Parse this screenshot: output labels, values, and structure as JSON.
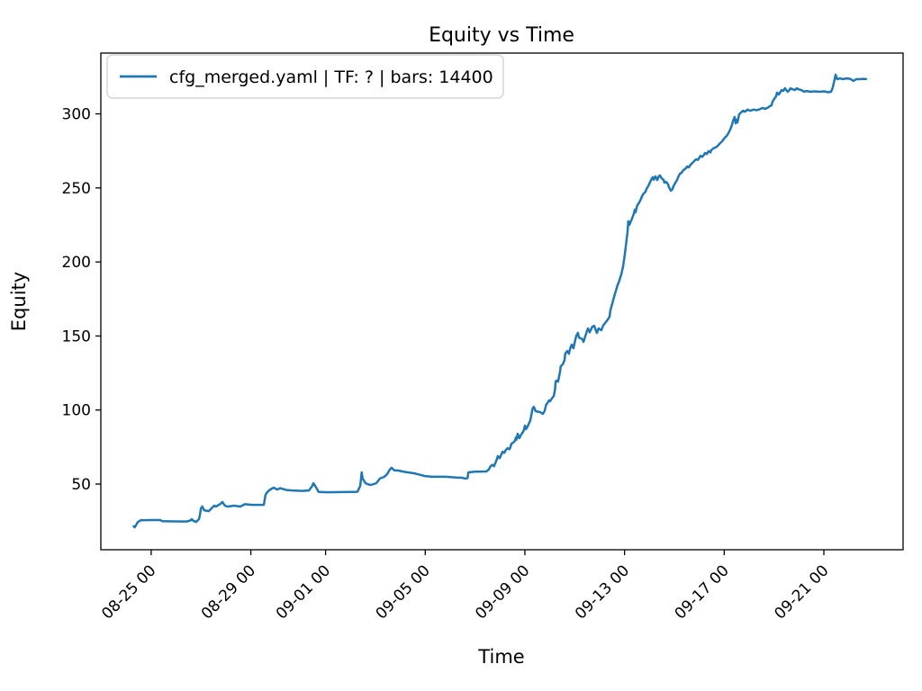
{
  "chart_data": {
    "type": "line",
    "title": "Equity vs Time",
    "xlabel": "Time",
    "ylabel": "Equity",
    "background": "#ffffff",
    "grid": false,
    "legend_position": "upper left",
    "frame_color": "#000000",
    "legend_border_color": "#cccccc",
    "x_unit": "days relative to 08-25 00:00",
    "xlim": [
      -2.02,
      30.18
    ],
    "ylim": [
      5.65,
      341.05
    ],
    "x_ticks": [
      {
        "label": "08-25 00",
        "t": 0
      },
      {
        "label": "08-29 00",
        "t": 4
      },
      {
        "label": "09-01 00",
        "t": 7
      },
      {
        "label": "09-05 00",
        "t": 11
      },
      {
        "label": "09-09 00",
        "t": 15
      },
      {
        "label": "09-13 00",
        "t": 19
      },
      {
        "label": "09-17 00",
        "t": 23
      },
      {
        "label": "09-21 00",
        "t": 27
      }
    ],
    "y_ticks": [
      50,
      100,
      150,
      200,
      250,
      300
    ],
    "series": [
      {
        "name": "cfg_merged.yaml | TF: ? | bars: 14400",
        "color": "#1f77b4",
        "line_width": 2.5,
        "points": [
          [
            -0.7,
            21.5
          ],
          [
            -0.66,
            20.8
          ],
          [
            -0.54,
            24.3
          ],
          [
            -0.42,
            25.6
          ],
          [
            0.0,
            25.7
          ],
          [
            0.36,
            25.7
          ],
          [
            0.45,
            24.9
          ],
          [
            0.9,
            24.8
          ],
          [
            1.41,
            24.7
          ],
          [
            1.58,
            25.4
          ],
          [
            1.63,
            26.3
          ],
          [
            1.7,
            25.1
          ],
          [
            1.81,
            24.5
          ],
          [
            1.92,
            26.3
          ],
          [
            1.95,
            28.7
          ],
          [
            2.0,
            33.6
          ],
          [
            2.05,
            34.8
          ],
          [
            2.13,
            32.3
          ],
          [
            2.31,
            31.7
          ],
          [
            2.42,
            33.6
          ],
          [
            2.53,
            35.4
          ],
          [
            2.6,
            34.8
          ],
          [
            2.78,
            36.6
          ],
          [
            2.86,
            37.9
          ],
          [
            2.96,
            35.4
          ],
          [
            3.07,
            34.8
          ],
          [
            3.33,
            35.4
          ],
          [
            3.58,
            34.8
          ],
          [
            3.76,
            36.4
          ],
          [
            4.05,
            36.0
          ],
          [
            4.52,
            36.0
          ],
          [
            4.59,
            42.7
          ],
          [
            4.66,
            44.5
          ],
          [
            4.73,
            45.7
          ],
          [
            4.84,
            46.9
          ],
          [
            4.92,
            47.6
          ],
          [
            5.06,
            46.3
          ],
          [
            5.17,
            47.2
          ],
          [
            5.42,
            46.0
          ],
          [
            5.67,
            45.7
          ],
          [
            6.04,
            45.4
          ],
          [
            6.33,
            45.7
          ],
          [
            6.47,
            48.8
          ],
          [
            6.51,
            50.6
          ],
          [
            6.58,
            48.8
          ],
          [
            6.65,
            46.9
          ],
          [
            6.72,
            44.7
          ],
          [
            7.12,
            44.5
          ],
          [
            7.66,
            44.6
          ],
          [
            8.28,
            44.8
          ],
          [
            8.39,
            48.8
          ],
          [
            8.45,
            57.9
          ],
          [
            8.49,
            53.7
          ],
          [
            8.6,
            50.6
          ],
          [
            8.71,
            49.8
          ],
          [
            8.82,
            49.4
          ],
          [
            9.04,
            50.6
          ],
          [
            9.18,
            53.7
          ],
          [
            9.36,
            54.9
          ],
          [
            9.47,
            56.7
          ],
          [
            9.58,
            59.8
          ],
          [
            9.65,
            61.0
          ],
          [
            9.76,
            59.3
          ],
          [
            9.94,
            59.1
          ],
          [
            10.08,
            58.5
          ],
          [
            10.3,
            57.9
          ],
          [
            10.55,
            57.3
          ],
          [
            10.77,
            56.3
          ],
          [
            10.99,
            55.4
          ],
          [
            11.28,
            54.9
          ],
          [
            11.82,
            54.9
          ],
          [
            12.25,
            54.4
          ],
          [
            12.47,
            54.3
          ],
          [
            12.61,
            53.7
          ],
          [
            12.7,
            54.0
          ],
          [
            12.73,
            57.9
          ],
          [
            12.98,
            58.4
          ],
          [
            13.45,
            58.5
          ],
          [
            13.55,
            59.8
          ],
          [
            13.63,
            62.2
          ],
          [
            13.7,
            63.0
          ],
          [
            13.76,
            62.0
          ],
          [
            13.83,
            64.8
          ],
          [
            13.88,
            67.0
          ],
          [
            13.91,
            68.9
          ],
          [
            13.99,
            67.5
          ],
          [
            14.06,
            70.1
          ],
          [
            14.1,
            71.9
          ],
          [
            14.17,
            71.0
          ],
          [
            14.24,
            73.1
          ],
          [
            14.31,
            74.3
          ],
          [
            14.38,
            73.5
          ],
          [
            14.42,
            74.9
          ],
          [
            14.46,
            77.3
          ],
          [
            14.53,
            78.0
          ],
          [
            14.6,
            79.2
          ],
          [
            14.64,
            81.5
          ],
          [
            14.67,
            80.0
          ],
          [
            14.71,
            84.0
          ],
          [
            14.78,
            81.0
          ],
          [
            14.85,
            83.4
          ],
          [
            14.92,
            85.0
          ],
          [
            14.96,
            86.5
          ],
          [
            15.0,
            89.5
          ],
          [
            15.04,
            87.1
          ],
          [
            15.1,
            88.5
          ],
          [
            15.14,
            90.1
          ],
          [
            15.22,
            93.0
          ],
          [
            15.31,
            101.0
          ],
          [
            15.36,
            102.2
          ],
          [
            15.43,
            99.2
          ],
          [
            15.52,
            98.9
          ],
          [
            15.61,
            98.6
          ],
          [
            15.72,
            97.4
          ],
          [
            15.79,
            99.2
          ],
          [
            15.85,
            103.5
          ],
          [
            15.9,
            104.7
          ],
          [
            15.97,
            106.5
          ],
          [
            16.01,
            105.9
          ],
          [
            16.08,
            107.7
          ],
          [
            16.16,
            109.5
          ],
          [
            16.21,
            113.8
          ],
          [
            16.23,
            118.6
          ],
          [
            16.26,
            119.9
          ],
          [
            16.33,
            119.2
          ],
          [
            16.41,
            125.9
          ],
          [
            16.44,
            129.6
          ],
          [
            16.52,
            130.8
          ],
          [
            16.59,
            133.8
          ],
          [
            16.62,
            138.1
          ],
          [
            16.7,
            139.9
          ],
          [
            16.77,
            138.0
          ],
          [
            16.81,
            141.1
          ],
          [
            16.88,
            144.2
          ],
          [
            16.95,
            141.7
          ],
          [
            16.99,
            144.8
          ],
          [
            17.06,
            150.2
          ],
          [
            17.13,
            152.1
          ],
          [
            17.17,
            149.0
          ],
          [
            17.31,
            147.8
          ],
          [
            17.35,
            146.0
          ],
          [
            17.49,
            153.3
          ],
          [
            17.53,
            155.1
          ],
          [
            17.6,
            152.5
          ],
          [
            17.71,
            156.3
          ],
          [
            17.78,
            156.9
          ],
          [
            17.89,
            152.1
          ],
          [
            17.96,
            155.1
          ],
          [
            18.07,
            153.9
          ],
          [
            18.14,
            157.0
          ],
          [
            18.25,
            159.4
          ],
          [
            18.33,
            161.2
          ],
          [
            18.4,
            163.0
          ],
          [
            18.43,
            167.2
          ],
          [
            18.51,
            172.1
          ],
          [
            18.58,
            176.4
          ],
          [
            18.65,
            180.6
          ],
          [
            18.72,
            184.3
          ],
          [
            18.79,
            187.3
          ],
          [
            18.87,
            191.6
          ],
          [
            18.94,
            197.0
          ],
          [
            19.01,
            204.9
          ],
          [
            19.08,
            215.0
          ],
          [
            19.12,
            220.7
          ],
          [
            19.15,
            227.5
          ],
          [
            19.19,
            225.0
          ],
          [
            19.3,
            229.2
          ],
          [
            19.38,
            233.0
          ],
          [
            19.41,
            235.3
          ],
          [
            19.44,
            233.5
          ],
          [
            19.51,
            238.3
          ],
          [
            19.59,
            240.2
          ],
          [
            19.66,
            242.5
          ],
          [
            19.7,
            244.4
          ],
          [
            19.77,
            246.2
          ],
          [
            19.84,
            247.4
          ],
          [
            19.88,
            249.3
          ],
          [
            19.95,
            251.1
          ],
          [
            20.06,
            255.3
          ],
          [
            20.13,
            257.2
          ],
          [
            20.17,
            255.5
          ],
          [
            20.24,
            257.8
          ],
          [
            20.31,
            255.3
          ],
          [
            20.38,
            258.0
          ],
          [
            20.42,
            258.4
          ],
          [
            20.49,
            256.5
          ],
          [
            20.57,
            255.3
          ],
          [
            20.6,
            253.5
          ],
          [
            20.67,
            254.1
          ],
          [
            20.75,
            252.3
          ],
          [
            20.78,
            250.5
          ],
          [
            20.86,
            248.1
          ],
          [
            20.93,
            249.3
          ],
          [
            20.96,
            251.1
          ],
          [
            21.04,
            253.5
          ],
          [
            21.11,
            255.3
          ],
          [
            21.15,
            257.2
          ],
          [
            21.22,
            259.6
          ],
          [
            21.29,
            260.2
          ],
          [
            21.33,
            261.4
          ],
          [
            21.4,
            262.6
          ],
          [
            21.47,
            263.3
          ],
          [
            21.51,
            264.5
          ],
          [
            21.58,
            263.9
          ],
          [
            21.65,
            265.7
          ],
          [
            21.69,
            266.3
          ],
          [
            21.76,
            267.5
          ],
          [
            21.83,
            268.7
          ],
          [
            21.87,
            269.3
          ],
          [
            21.94,
            268.9
          ],
          [
            22.01,
            270.5
          ],
          [
            22.05,
            271.7
          ],
          [
            22.12,
            271.0
          ],
          [
            22.19,
            272.3
          ],
          [
            22.23,
            273.6
          ],
          [
            22.3,
            272.9
          ],
          [
            22.37,
            274.8
          ],
          [
            22.45,
            274.0
          ],
          [
            22.48,
            275.4
          ],
          [
            22.55,
            276.6
          ],
          [
            22.63,
            277.2
          ],
          [
            22.7,
            277.8
          ],
          [
            22.77,
            279.0
          ],
          [
            22.84,
            280.3
          ],
          [
            22.92,
            281.5
          ],
          [
            23.02,
            283.9
          ],
          [
            23.1,
            285.1
          ],
          [
            23.17,
            287.0
          ],
          [
            23.24,
            289.4
          ],
          [
            23.31,
            292.4
          ],
          [
            23.35,
            295.0
          ],
          [
            23.42,
            297.9
          ],
          [
            23.46,
            293.6
          ],
          [
            23.49,
            296.0
          ],
          [
            23.53,
            294.2
          ],
          [
            23.6,
            299.7
          ],
          [
            23.67,
            300.9
          ],
          [
            23.75,
            302.1
          ],
          [
            23.85,
            301.5
          ],
          [
            23.93,
            302.9
          ],
          [
            24.04,
            302.1
          ],
          [
            24.18,
            302.9
          ],
          [
            24.29,
            302.5
          ],
          [
            24.4,
            302.9
          ],
          [
            24.54,
            304.0
          ],
          [
            24.65,
            303.4
          ],
          [
            24.76,
            304.3
          ],
          [
            24.83,
            305.2
          ],
          [
            24.9,
            305.8
          ],
          [
            24.94,
            308.2
          ],
          [
            25.01,
            310.1
          ],
          [
            25.08,
            311.9
          ],
          [
            25.12,
            314.3
          ],
          [
            25.19,
            313.1
          ],
          [
            25.26,
            314.9
          ],
          [
            25.3,
            316.1
          ],
          [
            25.37,
            315.5
          ],
          [
            25.44,
            317.3
          ],
          [
            25.52,
            315.5
          ],
          [
            25.55,
            314.9
          ],
          [
            25.62,
            316.1
          ],
          [
            25.66,
            317.3
          ],
          [
            25.73,
            316.7
          ],
          [
            25.84,
            316.1
          ],
          [
            25.91,
            317.3
          ],
          [
            25.99,
            316.5
          ],
          [
            26.1,
            316.1
          ],
          [
            26.21,
            314.9
          ],
          [
            26.31,
            315.5
          ],
          [
            26.46,
            314.9
          ],
          [
            26.64,
            315.2
          ],
          [
            26.82,
            314.9
          ],
          [
            27.0,
            315.2
          ],
          [
            27.18,
            314.6
          ],
          [
            27.29,
            314.9
          ],
          [
            27.36,
            318.0
          ],
          [
            27.4,
            321.0
          ],
          [
            27.47,
            326.4
          ],
          [
            27.54,
            323.4
          ],
          [
            27.65,
            324.0
          ],
          [
            27.76,
            323.4
          ],
          [
            27.9,
            324.0
          ],
          [
            28.05,
            323.7
          ],
          [
            28.19,
            322.2
          ],
          [
            28.3,
            323.4
          ],
          [
            28.45,
            323.4
          ],
          [
            28.55,
            323.7
          ],
          [
            28.7,
            323.5
          ]
        ]
      }
    ]
  }
}
